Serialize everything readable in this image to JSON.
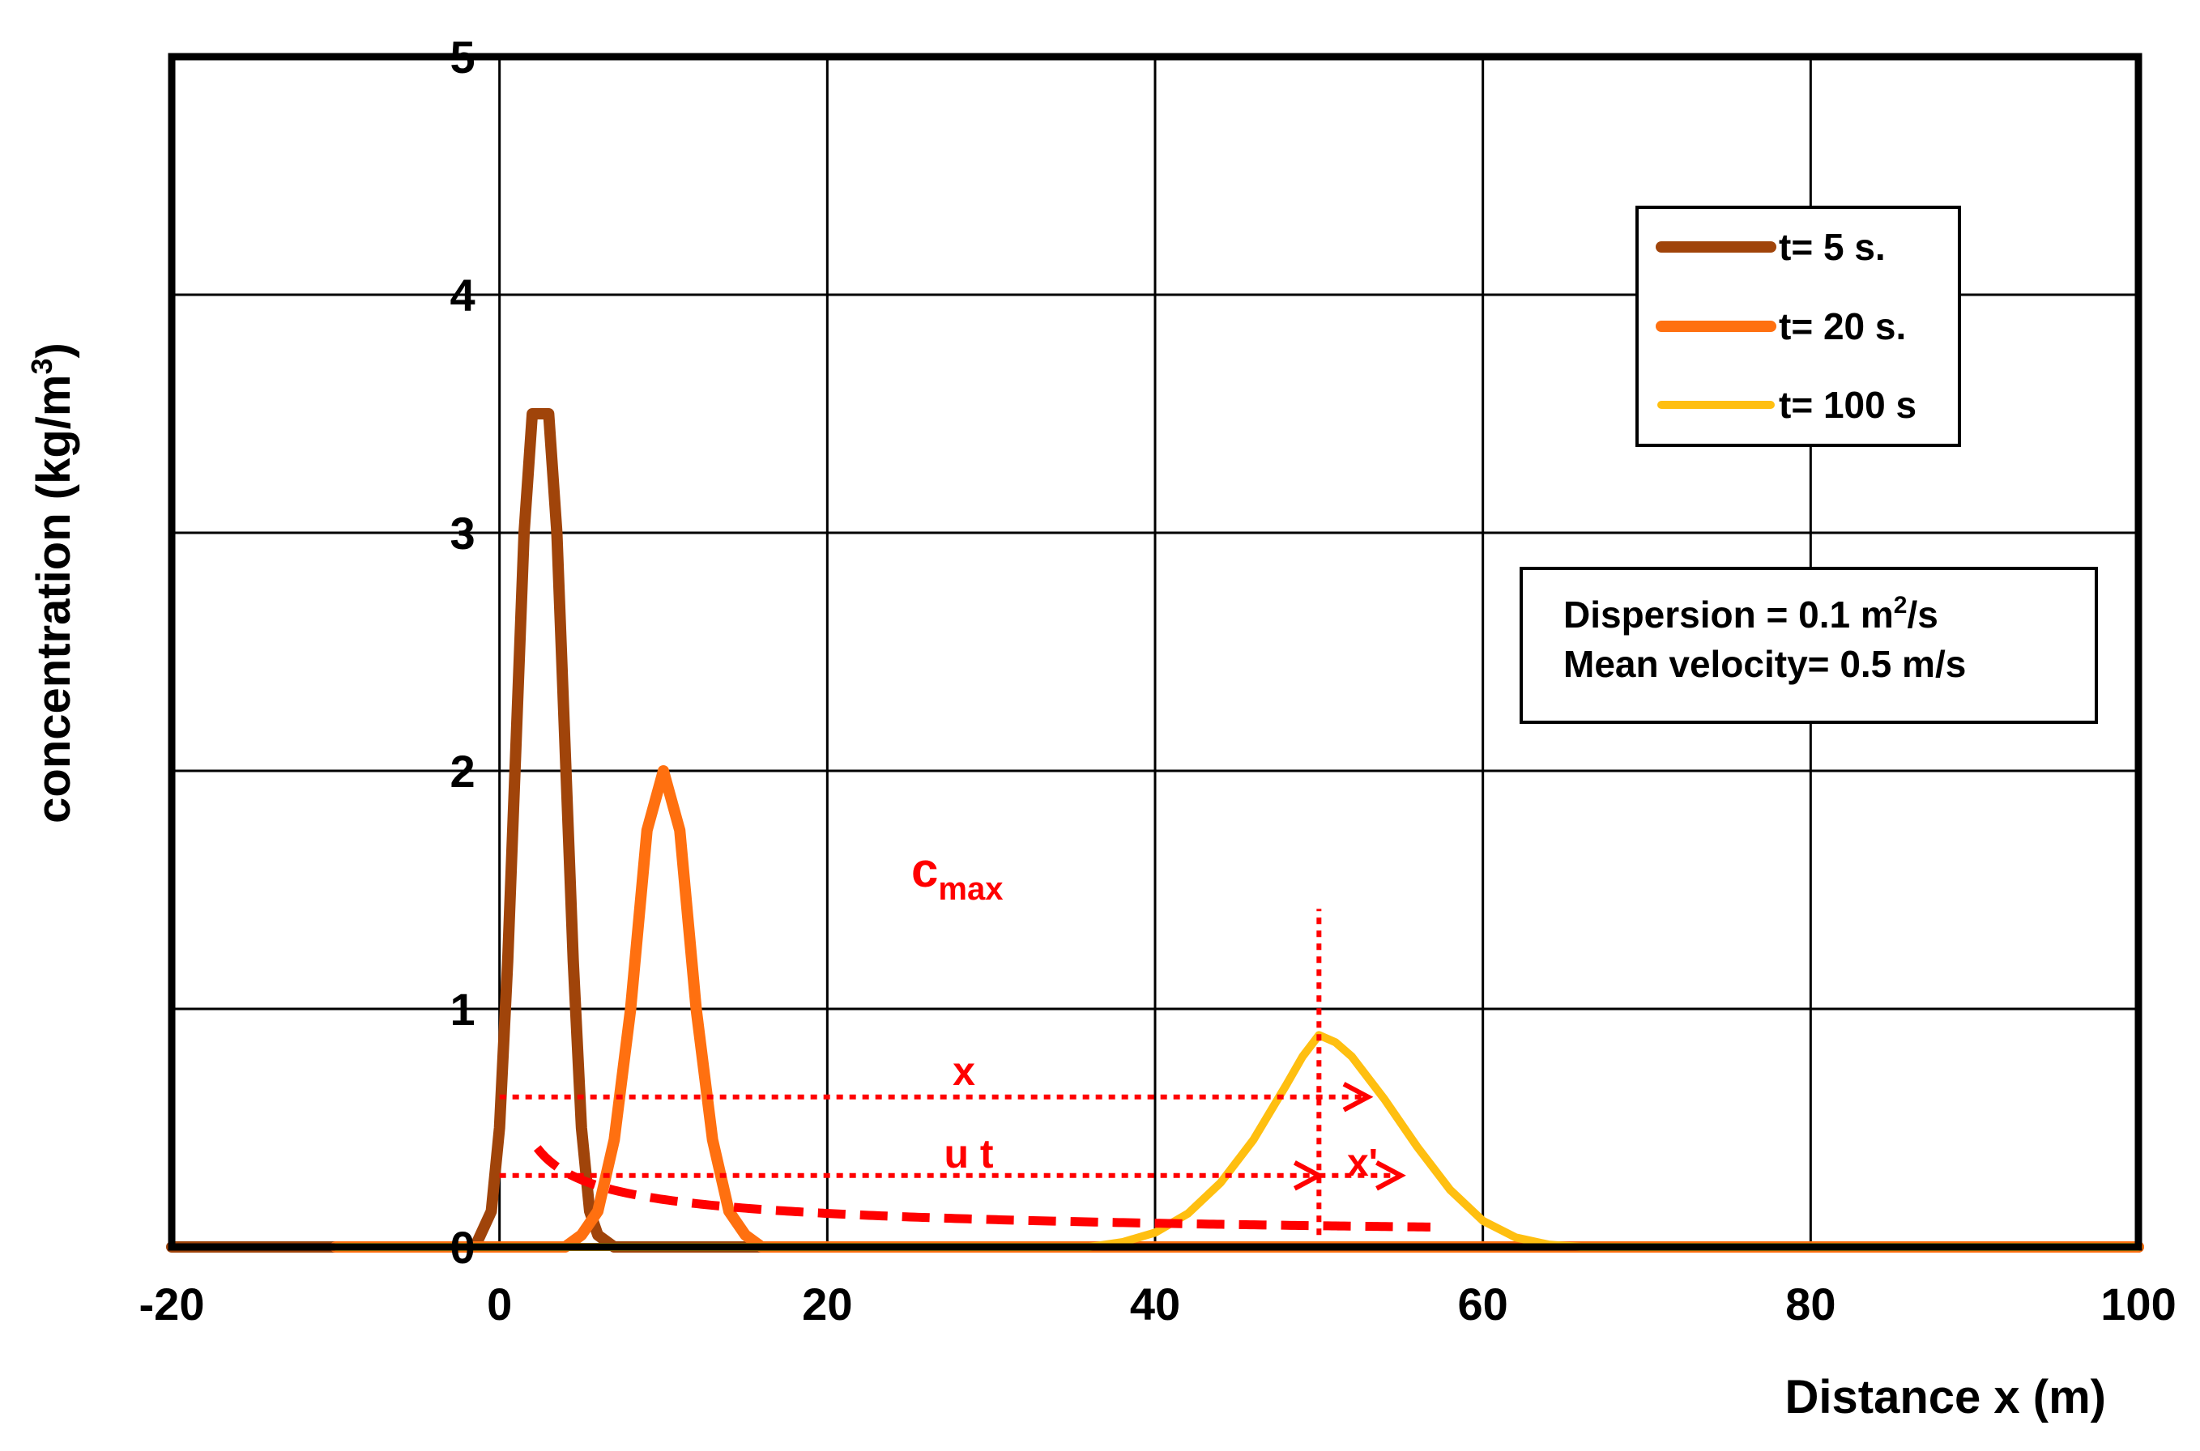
{
  "chart_data": {
    "type": "line",
    "title": "",
    "xlabel": "Distance x (m)",
    "ylabel_main": "concentration (kg/m",
    "ylabel_sup": "3",
    "ylabel_close": ")",
    "xlim": [
      -20,
      100
    ],
    "ylim": [
      0,
      5
    ],
    "xticks": [
      "-20",
      "0",
      "20",
      "40",
      "60",
      "80",
      "100"
    ],
    "yticks": [
      "0",
      "1",
      "2",
      "3",
      "4",
      "5"
    ],
    "grid": true,
    "legend_position": "top-right",
    "dispersion_m2_per_s": 0.1,
    "mean_velocity_m_per_s": 0.5,
    "series": [
      {
        "name": "t= 5 s.",
        "t": 5,
        "color": "#a0440a",
        "width": 14,
        "points": [
          [
            -1.5,
            0
          ],
          [
            -0.5,
            0.15
          ],
          [
            0,
            0.5
          ],
          [
            0.5,
            1.2
          ],
          [
            1,
            2.1
          ],
          [
            1.5,
            3.0
          ],
          [
            2,
            3.5
          ],
          [
            3,
            3.5
          ],
          [
            3.5,
            3.0
          ],
          [
            4,
            2.1
          ],
          [
            4.5,
            1.2
          ],
          [
            5,
            0.5
          ],
          [
            5.5,
            0.15
          ],
          [
            6,
            0.05
          ],
          [
            7,
            0
          ]
        ]
      },
      {
        "name": "t= 20 s.",
        "t": 20,
        "color": "#ff7010",
        "width": 14,
        "points": [
          [
            4,
            0
          ],
          [
            5,
            0.05
          ],
          [
            6,
            0.15
          ],
          [
            7,
            0.45
          ],
          [
            8,
            1.0
          ],
          [
            9,
            1.75
          ],
          [
            10,
            2.0
          ],
          [
            11,
            1.75
          ],
          [
            12,
            1.0
          ],
          [
            13,
            0.45
          ],
          [
            14,
            0.15
          ],
          [
            15,
            0.05
          ],
          [
            16,
            0
          ]
        ]
      },
      {
        "name": "t= 100 s",
        "t": 100,
        "color": "#ffbf10",
        "width": 10,
        "points": [
          [
            36,
            0
          ],
          [
            38,
            0.02
          ],
          [
            40,
            0.06
          ],
          [
            42,
            0.14
          ],
          [
            44,
            0.27
          ],
          [
            46,
            0.45
          ],
          [
            48,
            0.68
          ],
          [
            49,
            0.8
          ],
          [
            50,
            0.89
          ],
          [
            51,
            0.86
          ],
          [
            52,
            0.8
          ],
          [
            54,
            0.62
          ],
          [
            56,
            0.42
          ],
          [
            58,
            0.24
          ],
          [
            60,
            0.11
          ],
          [
            62,
            0.04
          ],
          [
            64,
            0.01
          ],
          [
            66,
            0
          ]
        ]
      }
    ],
    "cmax_curve": {
      "name": "c",
      "subscript": "max",
      "x_start": 2.3,
      "x_end": 57,
      "color": "#ff0000"
    },
    "annotations": [
      {
        "label": "x",
        "y": 0.63,
        "x_from": 0,
        "x_to": 53
      },
      {
        "label": "u t",
        "y": 0.3,
        "x_from": 0,
        "x_to": 50
      },
      {
        "label": "x'",
        "y": 0.3,
        "x_from": 50,
        "x_to": 55
      }
    ],
    "vertical_marker": {
      "x": 50,
      "y_from": 0.05,
      "y_to": 1.42
    },
    "info_box": {
      "line1_main": "Dispersion = 0.1 m",
      "line1_sup": "2",
      "line1_tail": "/s",
      "line2": "Mean velocity= 0.5 m/s"
    }
  }
}
